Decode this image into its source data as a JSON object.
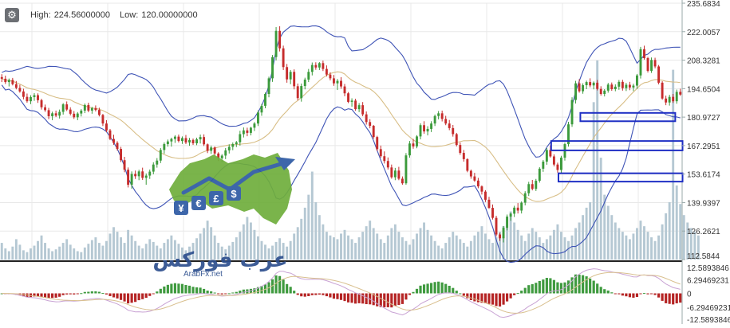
{
  "header": {
    "settings_icon": "gear-icon",
    "high_label": "High:",
    "high_value": "224.56000000",
    "low_label": "Low:",
    "low_value": "120.00000000"
  },
  "watermark": {
    "brand_arabic": "عرب فوركس",
    "domain": "ArabFx.net",
    "currency_symbols": [
      "¥",
      "€",
      "£",
      "$"
    ],
    "colors": {
      "map_green": "#6fae3c",
      "arrow_blue": "#2d5aa3"
    }
  },
  "chart_data": {
    "type": "candlestick",
    "price_axis": {
      "range": [
        112.5844,
        235.6834
      ],
      "tick_labels": [
        "235.6834",
        "222.0057",
        "208.3281",
        "194.6504",
        "180.9727",
        "167.2951",
        "153.6174",
        "139.9397",
        "126.2621",
        "112.5844"
      ]
    },
    "indicator_axis": {
      "range": [
        -12.5893846,
        12.5893846
      ],
      "tick_labels": [
        "12.5893846",
        "6.29469231",
        "0",
        "-6.29469231",
        "-12.5893846"
      ]
    },
    "annotations": [
      {
        "shape": "rectangle",
        "color": "#1f2fc4",
        "price_range": [
          179.0,
          183.0
        ],
        "x_range": [
          0.795,
          0.925
        ]
      },
      {
        "shape": "rectangle",
        "color": "#1f2fc4",
        "price_range": [
          165.0,
          169.5
        ],
        "x_range": [
          0.755,
          0.935
        ]
      },
      {
        "shape": "rectangle",
        "color": "#1f2fc4",
        "price_range": [
          150.0,
          154.0
        ],
        "x_range": [
          0.765,
          0.935
        ]
      }
    ],
    "colors": {
      "up": "#3b9a3b",
      "down": "#c62c2c",
      "bollinger": "#3f54b6",
      "moving_average": "#d8be86",
      "volume": "#b5c8d3",
      "histogram_up": "#3f9a3f",
      "histogram_down": "#b52424",
      "signal_line_1": "#c9a3d4",
      "signal_line_2": "#d9c08f",
      "grid": "#e8e8e8"
    },
    "grid": true,
    "candles": [
      [
        200.2,
        201.6,
        197.8,
        199.4
      ],
      [
        199.4,
        200.9,
        196.9,
        197.8
      ],
      [
        197.8,
        199.5,
        195.7,
        198.8
      ],
      [
        198.8,
        199.8,
        196.2,
        196.8
      ],
      [
        196.8,
        198.3,
        194.3,
        195.0
      ],
      [
        195.0,
        196.5,
        192.7,
        193.3
      ],
      [
        193.3,
        194.6,
        189.5,
        190.7
      ],
      [
        190.7,
        192.3,
        187.9,
        188.6
      ],
      [
        188.6,
        191.5,
        187.2,
        190.6
      ],
      [
        190.6,
        192.5,
        188.8,
        191.5
      ],
      [
        191.5,
        192.4,
        187.8,
        189.1
      ],
      [
        189.1,
        189.8,
        184.6,
        185.7
      ],
      [
        185.7,
        187.0,
        183.5,
        184.3
      ],
      [
        184.3,
        185.4,
        180.0,
        181.4
      ],
      [
        181.4,
        183.6,
        179.5,
        182.8
      ],
      [
        182.8,
        184.1,
        181.0,
        181.7
      ],
      [
        181.7,
        184.6,
        180.3,
        183.5
      ],
      [
        183.5,
        187.7,
        182.2,
        187.1
      ],
      [
        187.1,
        188.5,
        183.9,
        184.6
      ],
      [
        184.6,
        185.7,
        181.8,
        182.6
      ],
      [
        182.6,
        183.9,
        180.1,
        180.9
      ],
      [
        180.9,
        183.4,
        179.5,
        182.7
      ],
      [
        182.7,
        184.8,
        181.3,
        184.1
      ],
      [
        184.1,
        187.5,
        182.9,
        186.8
      ],
      [
        186.8,
        187.9,
        183.3,
        184.1
      ],
      [
        184.1,
        185.9,
        182.6,
        185.3
      ],
      [
        185.3,
        186.6,
        183.7,
        184.4
      ],
      [
        184.4,
        185.5,
        181.3,
        182.0
      ],
      [
        182.0,
        182.5,
        176.7,
        177.9
      ],
      [
        177.9,
        179.5,
        173.7,
        174.6
      ],
      [
        174.6,
        175.3,
        169.9,
        170.5
      ],
      [
        170.5,
        172.5,
        167.7,
        168.6
      ],
      [
        168.6,
        169.4,
        164.9,
        165.7
      ],
      [
        165.7,
        166.7,
        159.4,
        160.3
      ],
      [
        160.3,
        161.9,
        154.5,
        155.7
      ],
      [
        155.7,
        156.8,
        147.2,
        148.5
      ],
      [
        148.5,
        154.9,
        146.6,
        153.7
      ],
      [
        153.7,
        155.3,
        151.3,
        152.6
      ],
      [
        152.6,
        155.7,
        150.7,
        154.9
      ],
      [
        154.9,
        156.7,
        150.8,
        151.8
      ],
      [
        151.8,
        153.9,
        148.5,
        152.9
      ],
      [
        152.9,
        155.8,
        151.3,
        154.8
      ],
      [
        154.8,
        159.3,
        153.5,
        158.2
      ],
      [
        158.2,
        161.3,
        156.7,
        160.1
      ],
      [
        160.1,
        166.1,
        158.9,
        165.2
      ],
      [
        165.2,
        168.8,
        163.4,
        168.0
      ],
      [
        168.0,
        170.2,
        166.8,
        169.3
      ],
      [
        169.3,
        171.1,
        166.8,
        170.5
      ],
      [
        170.5,
        172.3,
        168.6,
        171.6
      ],
      [
        171.6,
        172.6,
        168.8,
        169.5
      ],
      [
        169.5,
        171.7,
        168.1,
        170.9
      ],
      [
        170.9,
        172.4,
        168.0,
        168.8
      ],
      [
        168.8,
        171.0,
        167.2,
        170.0
      ],
      [
        170.0,
        170.7,
        167.6,
        168.4
      ],
      [
        168.4,
        171.1,
        167.5,
        170.3
      ],
      [
        170.3,
        172.6,
        168.3,
        171.4
      ],
      [
        171.4,
        172.7,
        167.1,
        167.9
      ],
      [
        167.9,
        168.3,
        163.7,
        164.8
      ],
      [
        164.8,
        167.3,
        163.3,
        166.4
      ],
      [
        166.4,
        166.9,
        162.7,
        163.5
      ],
      [
        163.5,
        164.1,
        159.9,
        161.2
      ],
      [
        161.2,
        163.2,
        159.3,
        162.5
      ],
      [
        162.5,
        166.1,
        160.8,
        165.0
      ],
      [
        165.0,
        167.9,
        163.5,
        166.7
      ],
      [
        166.7,
        168.8,
        165.1,
        168.0
      ],
      [
        168.0,
        169.5,
        166.6,
        168.9
      ],
      [
        168.9,
        174.4,
        167.3,
        172.8
      ],
      [
        172.8,
        176.0,
        171.2,
        174.6
      ],
      [
        174.6,
        175.9,
        171.8,
        173.4
      ],
      [
        173.4,
        176.3,
        172.2,
        175.9
      ],
      [
        175.9,
        178.6,
        174.3,
        177.9
      ],
      [
        177.9,
        184.2,
        176.7,
        183.2
      ],
      [
        183.2,
        187.3,
        181.6,
        186.4
      ],
      [
        186.4,
        192.8,
        185.2,
        192.1
      ],
      [
        192.1,
        200.4,
        190.5,
        199.6
      ],
      [
        199.6,
        210.8,
        197.9,
        209.8
      ],
      [
        209.8,
        224.2,
        208.2,
        222.4
      ],
      [
        222.4,
        224.6,
        212.5,
        214.0
      ],
      [
        214.0,
        215.3,
        203.6,
        205.0
      ],
      [
        205.0,
        206.5,
        197.5,
        199.1
      ],
      [
        199.1,
        203.6,
        196.8,
        202.7
      ],
      [
        202.7,
        203.9,
        194.3,
        195.8
      ],
      [
        195.8,
        197.1,
        189.0,
        190.1
      ],
      [
        190.1,
        197.1,
        188.4,
        195.9
      ],
      [
        195.9,
        199.9,
        194.3,
        199.0
      ],
      [
        199.0,
        204.1,
        197.8,
        202.7
      ],
      [
        202.7,
        207.2,
        201.0,
        206.0
      ],
      [
        206.0,
        207.3,
        203.7,
        204.8
      ],
      [
        204.8,
        207.4,
        203.6,
        206.9
      ],
      [
        206.9,
        208.1,
        203.1,
        204.1
      ],
      [
        204.1,
        205.8,
        200.5,
        201.4
      ],
      [
        201.4,
        202.5,
        198.6,
        199.6
      ],
      [
        199.6,
        201.2,
        196.0,
        197.2
      ],
      [
        197.2,
        199.3,
        194.0,
        198.4
      ],
      [
        198.4,
        200.2,
        194.6,
        195.7
      ],
      [
        195.7,
        196.9,
        191.0,
        192.4
      ],
      [
        192.4,
        193.0,
        187.7,
        188.3
      ],
      [
        188.3,
        190.0,
        186.0,
        188.9
      ],
      [
        188.9,
        189.8,
        184.0,
        184.8
      ],
      [
        184.8,
        187.7,
        183.4,
        186.7
      ],
      [
        186.7,
        188.2,
        181.4,
        182.3
      ],
      [
        182.3,
        183.7,
        177.4,
        178.6
      ],
      [
        178.6,
        180.0,
        175.6,
        176.8
      ],
      [
        176.8,
        177.2,
        170.6,
        171.4
      ],
      [
        171.4,
        172.0,
        164.7,
        165.6
      ],
      [
        165.6,
        167.3,
        161.5,
        162.2
      ],
      [
        162.2,
        164.5,
        158.7,
        159.9
      ],
      [
        159.9,
        161.6,
        155.8,
        156.8
      ],
      [
        156.8,
        158.2,
        151.4,
        152.1
      ],
      [
        152.1,
        156.6,
        150.7,
        155.3
      ],
      [
        155.3,
        157.1,
        150.7,
        151.4
      ],
      [
        151.4,
        152.5,
        148.5,
        149.2
      ],
      [
        149.2,
        163.7,
        148.5,
        162.6
      ],
      [
        162.6,
        169.5,
        161.5,
        168.3
      ],
      [
        168.3,
        170.5,
        165.8,
        166.9
      ],
      [
        166.9,
        172.3,
        166.0,
        171.7
      ],
      [
        171.7,
        178.0,
        170.3,
        177.1
      ],
      [
        177.1,
        179.0,
        173.0,
        174.1
      ],
      [
        174.1,
        176.6,
        172.2,
        175.3
      ],
      [
        175.3,
        179.0,
        173.8,
        177.9
      ],
      [
        177.9,
        182.2,
        176.7,
        181.5
      ],
      [
        181.5,
        183.9,
        179.9,
        182.8
      ],
      [
        182.8,
        184.1,
        178.9,
        180.1
      ],
      [
        180.1,
        181.6,
        177.1,
        177.9
      ],
      [
        177.9,
        179.6,
        174.7,
        175.7
      ],
      [
        175.7,
        177.2,
        171.6,
        172.8
      ],
      [
        172.8,
        173.4,
        166.9,
        167.6
      ],
      [
        167.6,
        168.8,
        162.9,
        163.8
      ],
      [
        163.8,
        165.2,
        159.6,
        160.8
      ],
      [
        160.8,
        161.2,
        154.5,
        155.2
      ],
      [
        155.2,
        155.8,
        151.4,
        152.5
      ],
      [
        152.5,
        154.2,
        149.9,
        150.5
      ],
      [
        150.5,
        151.8,
        146.8,
        147.7
      ],
      [
        147.7,
        148.2,
        143.8,
        145.2
      ],
      [
        145.2,
        145.9,
        140.2,
        141.3
      ],
      [
        141.3,
        142.7,
        136.9,
        137.4
      ],
      [
        137.4,
        139.0,
        131.8,
        132.6
      ],
      [
        132.6,
        133.6,
        123.7,
        124.6
      ],
      [
        124.6,
        125.4,
        121.5,
        122.8
      ],
      [
        122.8,
        128.7,
        120.8,
        127.8
      ],
      [
        127.8,
        134.2,
        126.6,
        133.2
      ],
      [
        133.2,
        135.1,
        131.2,
        134.6
      ],
      [
        134.6,
        138.4,
        133.0,
        137.5
      ],
      [
        137.5,
        139.7,
        134.7,
        136.1
      ],
      [
        136.1,
        140.5,
        134.7,
        139.9
      ],
      [
        139.9,
        145.4,
        138.6,
        144.4
      ],
      [
        144.4,
        149.9,
        143.1,
        148.8
      ],
      [
        148.8,
        150.8,
        145.8,
        146.5
      ],
      [
        146.5,
        151.3,
        145.5,
        150.4
      ],
      [
        150.4,
        156.9,
        149.5,
        156.2
      ],
      [
        156.2,
        160.4,
        154.7,
        159.6
      ],
      [
        159.6,
        166.1,
        158.1,
        165.2
      ],
      [
        165.2,
        167.4,
        161.5,
        162.1
      ],
      [
        162.1,
        163.1,
        157.3,
        158.2
      ],
      [
        158.2,
        159.1,
        154.3,
        155.6
      ],
      [
        155.6,
        162.4,
        154.1,
        161.5
      ],
      [
        161.5,
        168.7,
        160.1,
        168.0
      ],
      [
        168.0,
        178.7,
        166.8,
        177.5
      ],
      [
        177.5,
        190.5,
        176.3,
        189.2
      ],
      [
        189.2,
        198.4,
        187.5,
        197.2
      ],
      [
        197.2,
        199.2,
        192.7,
        193.4
      ],
      [
        193.4,
        197.2,
        192.2,
        196.3
      ],
      [
        196.3,
        198.5,
        194.4,
        197.8
      ],
      [
        197.8,
        199.6,
        195.3,
        196.2
      ],
      [
        196.2,
        198.1,
        194.3,
        197.5
      ],
      [
        197.5,
        198.8,
        193.8,
        194.5
      ],
      [
        194.5,
        195.8,
        191.3,
        192.1
      ],
      [
        192.1,
        194.4,
        190.9,
        193.7
      ],
      [
        193.7,
        197.4,
        192.7,
        196.6
      ],
      [
        196.6,
        197.6,
        193.6,
        194.4
      ],
      [
        194.4,
        196.7,
        193.4,
        195.6
      ],
      [
        195.6,
        198.8,
        194.1,
        197.9
      ],
      [
        197.9,
        198.9,
        193.7,
        194.9
      ],
      [
        194.9,
        197.4,
        193.5,
        196.5
      ],
      [
        196.5,
        197.9,
        193.9,
        195.2
      ],
      [
        195.2,
        197.0,
        193.5,
        196.1
      ],
      [
        196.1,
        201.7,
        194.5,
        201.0
      ],
      [
        201.0,
        214.7,
        199.5,
        213.6
      ],
      [
        213.6,
        215.3,
        208.6,
        209.3
      ],
      [
        209.3,
        209.9,
        202.4,
        203.2
      ],
      [
        203.2,
        209.6,
        202.2,
        208.4
      ],
      [
        208.4,
        209.5,
        204.4,
        205.3
      ],
      [
        205.3,
        206.0,
        196.7,
        197.5
      ],
      [
        197.5,
        198.2,
        189.3,
        189.9
      ],
      [
        189.9,
        191.3,
        186.7,
        188.0
      ],
      [
        188.0,
        191.7,
        186.5,
        190.7
      ],
      [
        190.7,
        192.1,
        187.8,
        188.6
      ],
      [
        188.6,
        194.2,
        187.4,
        193.1
      ],
      [
        193.1,
        194.6,
        191.2,
        191.8
      ]
    ],
    "volume": [
      18,
      12,
      9,
      14,
      22,
      16,
      10,
      8,
      12,
      15,
      20,
      26,
      18,
      12,
      9,
      11,
      14,
      18,
      22,
      16,
      12,
      9,
      8,
      13,
      17,
      21,
      24,
      18,
      15,
      20,
      28,
      35,
      30,
      24,
      18,
      32,
      26,
      20,
      15,
      12,
      17,
      22,
      19,
      15,
      12,
      18,
      22,
      26,
      21,
      17,
      13,
      10,
      14,
      18,
      23,
      28,
      34,
      42,
      35,
      26,
      18,
      14,
      11,
      15,
      19,
      24,
      30,
      38,
      46,
      40,
      32,
      25,
      20,
      16,
      12,
      15,
      19,
      23,
      18,
      14,
      20,
      28,
      35,
      44,
      56,
      70,
      95,
      62,
      48,
      38,
      30,
      26,
      24,
      22,
      28,
      32,
      26,
      22,
      18,
      24,
      30,
      36,
      42,
      34,
      28,
      22,
      18,
      26,
      34,
      38,
      30,
      24,
      20,
      16,
      22,
      28,
      34,
      40,
      32,
      26,
      20,
      15,
      12,
      18,
      24,
      30,
      26,
      22,
      18,
      14,
      20,
      26,
      30,
      36,
      28,
      22,
      18,
      24,
      30,
      36,
      44,
      52,
      40,
      32,
      26,
      20,
      28,
      34,
      30,
      24,
      18,
      22,
      26,
      32,
      38,
      30,
      24,
      20,
      26,
      34,
      40,
      48,
      56,
      62,
      170,
      215,
      110,
      70,
      58,
      48,
      40,
      34,
      30,
      26,
      22,
      28,
      34,
      42,
      36,
      30,
      24,
      20,
      26,
      38,
      50,
      62,
      205,
      80,
      60,
      48,
      40,
      34,
      30,
      26
    ]
  }
}
